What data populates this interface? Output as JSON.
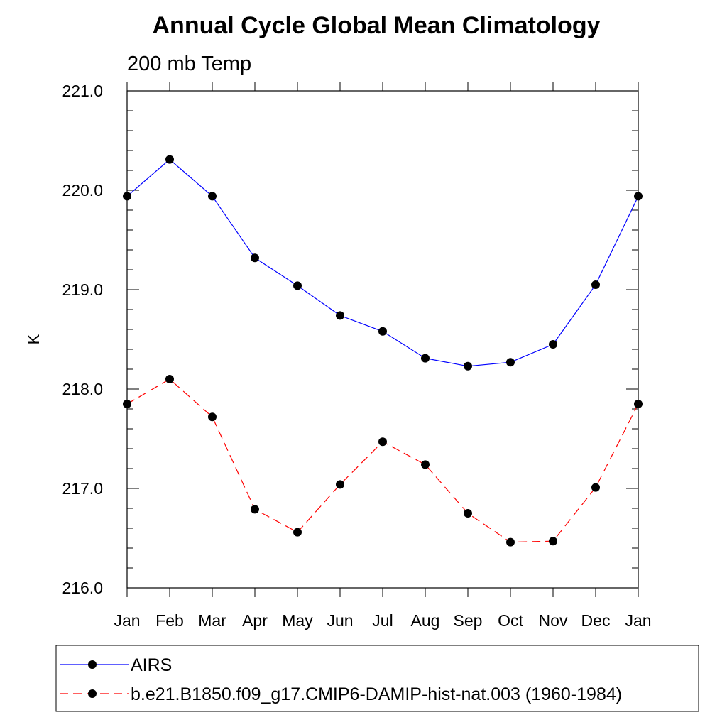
{
  "chart_data": {
    "type": "line",
    "title": "Annual Cycle Global Mean Climatology",
    "subtitle": "200 mb Temp",
    "xlabel": "",
    "ylabel": "K",
    "categories": [
      "Jan",
      "Feb",
      "Mar",
      "Apr",
      "May",
      "Jun",
      "Jul",
      "Aug",
      "Sep",
      "Oct",
      "Nov",
      "Dec",
      "Jan"
    ],
    "ylim": [
      216.0,
      221.0
    ],
    "yticks": [
      "216.0",
      "217.0",
      "218.0",
      "219.0",
      "220.0",
      "221.0"
    ],
    "legend_position": "bottom",
    "series": [
      {
        "name": "AIRS",
        "color": "#0000ff",
        "dash": "solid",
        "marker": "filled-circle",
        "values": [
          219.94,
          220.31,
          219.94,
          219.32,
          219.04,
          218.74,
          218.58,
          218.31,
          218.23,
          218.27,
          218.45,
          219.05,
          219.94
        ]
      },
      {
        "name": "b.e21.B1850.f09_g17.CMIP6-DAMIP-hist-nat.003 (1960-1984)",
        "color": "#ff0000",
        "dash": "dashed",
        "marker": "filled-circle",
        "values": [
          217.85,
          218.1,
          217.72,
          216.79,
          216.56,
          217.04,
          217.47,
          217.24,
          216.75,
          216.46,
          216.47,
          217.01,
          217.85
        ]
      }
    ]
  }
}
